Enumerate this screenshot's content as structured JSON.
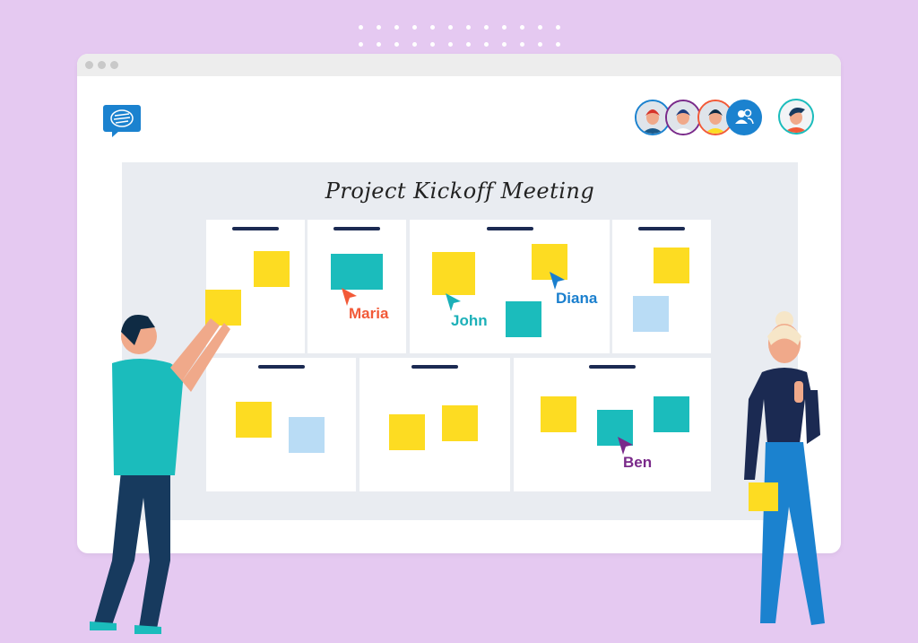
{
  "board": {
    "title": "Project Kickoff Meeting"
  },
  "colors": {
    "background": "#e5c9f1",
    "yellow_note": "#fddc22",
    "teal_note": "#1bbcbc",
    "blue_note": "#b9dcf5",
    "header_bar": "#1b2a52",
    "logo": "#1b82cf"
  },
  "header": {
    "logo_icon": "chat-bubble-icon",
    "participants": [
      {
        "name": "participant-1",
        "ring": "#1b82cf"
      },
      {
        "name": "participant-2",
        "ring": "#7a2a8a"
      },
      {
        "name": "participant-3",
        "ring": "#f25a38"
      }
    ],
    "group_icon": "users-icon",
    "current_user_ring": "#1bbcbc"
  },
  "cursors": [
    {
      "name": "Maria",
      "color": "#f25a38"
    },
    {
      "name": "John",
      "color": "#1bb0b8"
    },
    {
      "name": "Diana",
      "color": "#1a7fce"
    },
    {
      "name": "Ben",
      "color": "#7a2a8a"
    }
  ]
}
